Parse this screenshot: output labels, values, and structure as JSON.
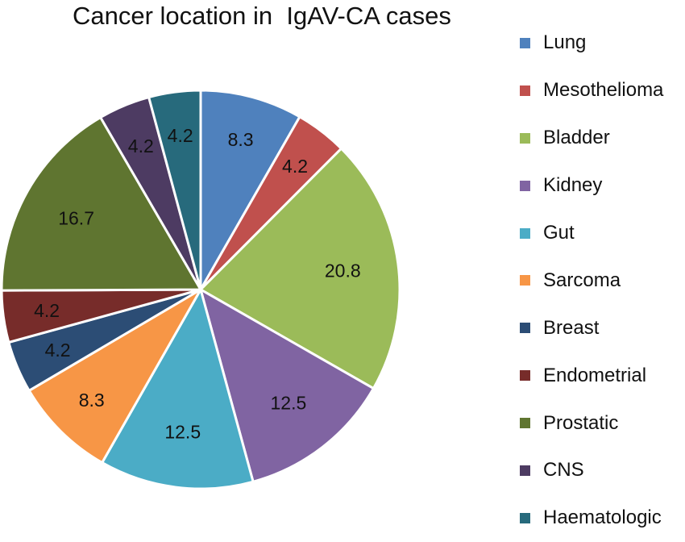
{
  "chart_data": {
    "type": "pie",
    "title": "Cancer location in  IgAV-CA cases",
    "legend_position": "right",
    "slices": [
      {
        "label": "Lung",
        "value": 8.3,
        "color": "#4f81bd"
      },
      {
        "label": "Mesothelioma",
        "value": 4.2,
        "color": "#c0504d"
      },
      {
        "label": "Bladder",
        "value": 20.8,
        "color": "#9bbb59"
      },
      {
        "label": "Kidney",
        "value": 12.5,
        "color": "#8064a2"
      },
      {
        "label": "Gut",
        "value": 12.5,
        "color": "#4bacc6"
      },
      {
        "label": "Sarcoma",
        "value": 8.3,
        "color": "#f79646"
      },
      {
        "label": "Breast",
        "value": 4.2,
        "color": "#2c4d75"
      },
      {
        "label": "Endometrial",
        "value": 4.2,
        "color": "#772c2a"
      },
      {
        "label": "Prostatic",
        "value": 16.7,
        "color": "#5f7530"
      },
      {
        "label": "CNS",
        "value": 4.2,
        "color": "#4d3b62"
      },
      {
        "label": "Haematologic",
        "value": 4.2,
        "color": "#276a7c"
      }
    ]
  }
}
